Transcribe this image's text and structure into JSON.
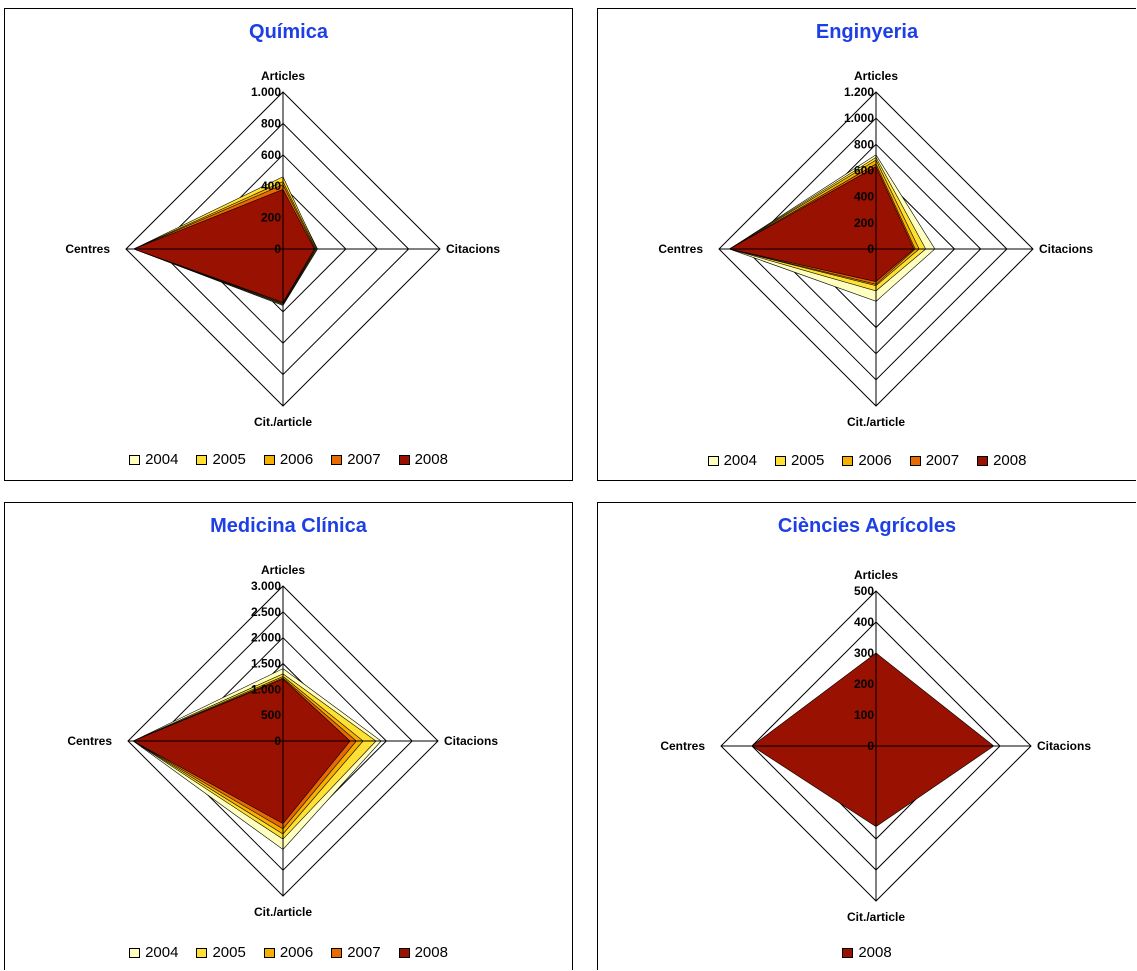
{
  "chart_data": [
    {
      "type": "radar",
      "title": "Química",
      "axes": [
        "Articles",
        "Citacions",
        "Cit./article",
        "Centres"
      ],
      "ticks": [
        "0",
        "200",
        "400",
        "600",
        "800",
        "1.000"
      ],
      "rmax": 1000,
      "series": [
        {
          "name": "2004",
          "color": "#ffffc0",
          "values": [
            440,
            220,
            360,
            950
          ]
        },
        {
          "name": "2005",
          "color": "#ffe033",
          "values": [
            460,
            215,
            355,
            950
          ]
        },
        {
          "name": "2006",
          "color": "#f5b000",
          "values": [
            430,
            210,
            350,
            950
          ]
        },
        {
          "name": "2007",
          "color": "#e86a00",
          "values": [
            410,
            205,
            345,
            950
          ]
        },
        {
          "name": "2008",
          "color": "#991100",
          "values": [
            380,
            200,
            340,
            950
          ]
        }
      ]
    },
    {
      "type": "radar",
      "title": "Enginyeria",
      "axes": [
        "Articles",
        "Citacions",
        "Cit./article",
        "Centres"
      ],
      "ticks": [
        "0",
        "200",
        "400",
        "600",
        "800",
        "1.000",
        "1.200"
      ],
      "rmax": 1200,
      "series": [
        {
          "name": "2004",
          "color": "#ffffc0",
          "values": [
            720,
            450,
            400,
            1120
          ]
        },
        {
          "name": "2005",
          "color": "#ffe033",
          "values": [
            700,
            380,
            320,
            1120
          ]
        },
        {
          "name": "2006",
          "color": "#f5b000",
          "values": [
            680,
            330,
            280,
            1120
          ]
        },
        {
          "name": "2007",
          "color": "#e86a00",
          "values": [
            650,
            300,
            270,
            1120
          ]
        },
        {
          "name": "2008",
          "color": "#991100",
          "values": [
            630,
            290,
            250,
            1120
          ]
        }
      ]
    },
    {
      "type": "radar",
      "title": "Medicina Clínica",
      "axes": [
        "Articles",
        "Citacions",
        "Cit./article",
        "Centres"
      ],
      "ticks": [
        "0",
        "500",
        "1.000",
        "1.500",
        "2.000",
        "2.500",
        "3.000"
      ],
      "rmax": 3000,
      "series": [
        {
          "name": "2004",
          "color": "#ffffc0",
          "values": [
            1400,
            1900,
            2100,
            2900
          ]
        },
        {
          "name": "2005",
          "color": "#ffe033",
          "values": [
            1300,
            1800,
            1900,
            2900
          ]
        },
        {
          "name": "2006",
          "color": "#f5b000",
          "values": [
            1250,
            1550,
            1800,
            2900
          ]
        },
        {
          "name": "2007",
          "color": "#e86a00",
          "values": [
            1220,
            1420,
            1700,
            2900
          ]
        },
        {
          "name": "2008",
          "color": "#991100",
          "values": [
            1200,
            1300,
            1600,
            2900
          ]
        }
      ]
    },
    {
      "type": "radar",
      "title": "Ciències Agrícoles",
      "axes": [
        "Articles",
        "Citacions",
        "Cit./article",
        "Centres"
      ],
      "ticks": [
        "0",
        "100",
        "200",
        "300",
        "400",
        "500"
      ],
      "rmax": 500,
      "series": [
        {
          "name": "2008",
          "color": "#991100",
          "values": [
            300,
            380,
            260,
            400
          ]
        }
      ]
    }
  ]
}
